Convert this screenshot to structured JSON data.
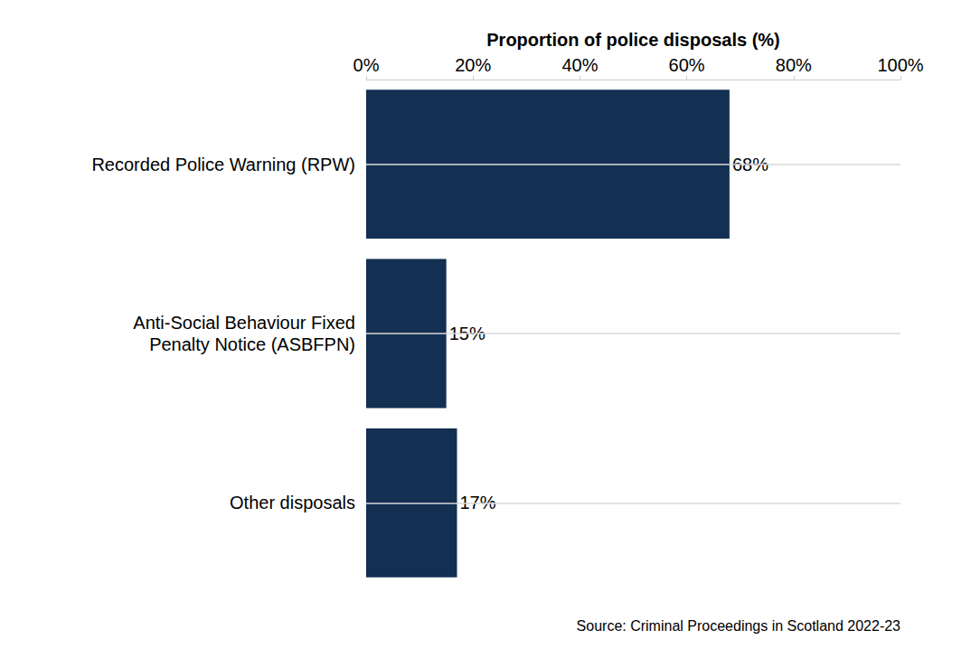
{
  "chart_data": {
    "type": "bar",
    "orientation": "horizontal",
    "x_label": "Proportion of police disposals (%)",
    "categories": [
      "Recorded Police Warning (RPW)",
      "Anti-Social Behaviour Fixed\nPenalty Notice (ASBFPN)",
      "Other disposals"
    ],
    "values": [
      68,
      15,
      17
    ],
    "value_labels": [
      "68%",
      "15%",
      "17%"
    ],
    "data_labels": true,
    "color": "#132f52",
    "xlim": [
      0,
      100
    ],
    "xticks": [
      {
        "value": 0,
        "label": "0%"
      },
      {
        "value": 20,
        "label": "20%"
      },
      {
        "value": 40,
        "label": "40%"
      },
      {
        "value": 60,
        "label": "60%"
      },
      {
        "value": 80,
        "label": "80%"
      },
      {
        "value": 100,
        "label": "100%"
      }
    ],
    "grid": true,
    "annotations": [
      "Source: Criminal Proceedings in Scotland 2022-23"
    ]
  }
}
